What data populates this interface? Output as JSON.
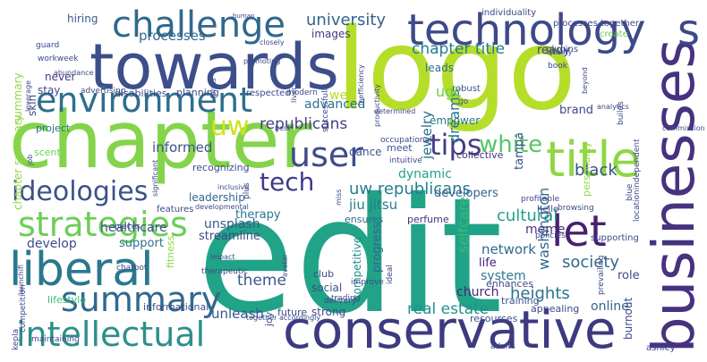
{
  "words": [
    {
      "text": "edit",
      "color": "#21A387"
    },
    {
      "text": "logo",
      "color": "#B5DE2B"
    },
    {
      "text": "chapter",
      "color": "#84D44B"
    },
    {
      "text": "towards",
      "color": "#3C4F8A"
    },
    {
      "text": "conservative",
      "color": "#3E3A80"
    },
    {
      "text": "businesses",
      "color": "#46327F"
    },
    {
      "text": "technology",
      "color": "#3E4989"
    },
    {
      "text": "challenge",
      "color": "#31688E"
    },
    {
      "text": "environment",
      "color": "#2E6E8E"
    },
    {
      "text": "liberal",
      "color": "#2A788E"
    },
    {
      "text": "intellectual",
      "color": "#2E8F8A"
    },
    {
      "text": "title",
      "color": "#8FD744"
    },
    {
      "text": "strategies",
      "color": "#6CCE59"
    },
    {
      "text": "summary",
      "color": "#30698E"
    },
    {
      "text": "ideologies",
      "color": "#3B528B"
    },
    {
      "text": "let",
      "color": "#482071"
    },
    {
      "text": "user",
      "color": "#3E4C8A"
    },
    {
      "text": "tips",
      "color": "#433E85"
    },
    {
      "text": "uw",
      "color": "#D2E21B"
    },
    {
      "text": "white",
      "color": "#56C667"
    },
    {
      "text": "tech",
      "color": "#40398C"
    },
    {
      "text": "s",
      "color": "#3E4989"
    },
    {
      "text": "uw republicans",
      "color": "#287C8E"
    },
    {
      "text": "university",
      "color": "#33628D"
    },
    {
      "text": "republicans",
      "color": "#433E85"
    },
    {
      "text": "chapter title",
      "color": "#297A8E"
    },
    {
      "text": "black",
      "color": "#3B528B"
    },
    {
      "text": "cultural",
      "color": "#1FA187"
    },
    {
      "text": "theme",
      "color": "#38588C"
    },
    {
      "text": "society",
      "color": "#31688E"
    },
    {
      "text": "network",
      "color": "#30698E"
    },
    {
      "text": "heights",
      "color": "#2C728E"
    },
    {
      "text": "real estate",
      "color": "#21918C"
    },
    {
      "text": "unleash",
      "color": "#39568C"
    },
    {
      "text": "washington",
      "color": "#30698E"
    },
    {
      "text": "processes",
      "color": "#31688E"
    },
    {
      "text": "informed",
      "color": "#3B528B"
    },
    {
      "text": "advanced",
      "color": "#2D708E"
    },
    {
      "text": "jewelry",
      "color": "#2D708E"
    },
    {
      "text": "dreams",
      "color": "#2A768E"
    },
    {
      "text": "developers",
      "color": "#33638D"
    },
    {
      "text": "dynamic",
      "color": "#20A486"
    },
    {
      "text": "jiu jitsu",
      "color": "#287C8E"
    },
    {
      "text": "selfcare",
      "color": "#3ABA76"
    },
    {
      "text": "healthcare",
      "color": "#3B528B"
    },
    {
      "text": "develop",
      "color": "#3E4A89"
    },
    {
      "text": "support",
      "color": "#2C738E"
    },
    {
      "text": "therapy",
      "color": "#2A788E"
    },
    {
      "text": "leadership",
      "color": "#31688E"
    },
    {
      "text": "unsplash",
      "color": "#38588C"
    },
    {
      "text": "streamline",
      "color": "#3E4989"
    },
    {
      "text": "church",
      "color": "#482677"
    },
    {
      "text": "system",
      "color": "#2A788E"
    },
    {
      "text": "online",
      "color": "#31688E"
    },
    {
      "text": "life",
      "color": "#482475"
    },
    {
      "text": "role",
      "color": "#3E4989"
    },
    {
      "text": "meme",
      "color": "#46337F"
    },
    {
      "text": "brand",
      "color": "#3F4889"
    },
    {
      "text": "ready",
      "color": "#433E85"
    },
    {
      "text": "ugc",
      "color": "#6CCE59"
    },
    {
      "text": "leads",
      "color": "#2E6E8E"
    },
    {
      "text": "dance",
      "color": "#3B528B"
    },
    {
      "text": "tampa",
      "color": "#3B528B"
    },
    {
      "text": "progress",
      "color": "#31688E"
    },
    {
      "text": "competitive",
      "color": "#218F8D"
    },
    {
      "text": "burnout",
      "color": "#3E4989"
    },
    {
      "text": "stay",
      "color": "#3E4C8A"
    },
    {
      "text": "never",
      "color": "#453781"
    },
    {
      "text": "hiring",
      "color": "#375A8C"
    },
    {
      "text": "project",
      "color": "#2C738E"
    },
    {
      "text": "recognizing",
      "color": "#3E4C8A"
    },
    {
      "text": "images",
      "color": "#443A83"
    },
    {
      "text": "web",
      "color": "#B5DE2B"
    },
    {
      "text": "empower",
      "color": "#2A788E"
    },
    {
      "text": "collective",
      "color": "#46307E"
    },
    {
      "text": "ensures",
      "color": "#30698E"
    },
    {
      "text": "perfume",
      "color": "#46337F"
    },
    {
      "text": "social",
      "color": "#3B528B"
    },
    {
      "text": "club",
      "color": "#3E4989"
    },
    {
      "text": "strong",
      "color": "#3E4C8A"
    },
    {
      "text": "future",
      "color": "#3E4C8A"
    },
    {
      "text": "informational",
      "color": "#3B528B"
    },
    {
      "text": "lifestyle",
      "color": "#3ABA76"
    },
    {
      "text": "resources",
      "color": "#3B528B"
    },
    {
      "text": "training",
      "color": "#3B528B"
    },
    {
      "text": "enhances",
      "color": "#3E4C8A"
    },
    {
      "text": "appealing",
      "color": "#3E4989"
    },
    {
      "text": "skin",
      "color": "#3E4989"
    },
    {
      "text": "summary",
      "color": "#90D743"
    },
    {
      "text": "chapter summary",
      "color": "#90D743"
    },
    {
      "text": "personality",
      "color": "#90D743"
    },
    {
      "text": "fitness",
      "color": "#90D743"
    },
    {
      "text": "scent",
      "color": "#6CCE59"
    },
    {
      "text": "meet",
      "color": "#38588C"
    },
    {
      "text": "joy",
      "color": "#3B528B"
    },
    {
      "text": "individuality",
      "color": "#3E4989"
    },
    {
      "text": "processes together",
      "color": "#3E4989"
    },
    {
      "text": "create",
      "color": "#6CCE59"
    },
    {
      "text": "plugins",
      "color": "#3B528B"
    },
    {
      "text": "robust",
      "color": "#3B528B"
    },
    {
      "text": "go",
      "color": "#3B528B"
    },
    {
      "text": "disabilities",
      "color": "#3E4989"
    },
    {
      "text": "planning",
      "color": "#3E4989"
    },
    {
      "text": "respected",
      "color": "#3E4989"
    },
    {
      "text": "modern",
      "color": "#3E4989"
    },
    {
      "text": "closely",
      "color": "#3E4989"
    },
    {
      "text": "workweek",
      "color": "#3E4989"
    },
    {
      "text": "guard",
      "color": "#3E4989"
    },
    {
      "text": "promoting",
      "color": "#3E4989"
    },
    {
      "text": "advertising",
      "color": "#3E4989"
    },
    {
      "text": "abundance",
      "color": "#3E4989"
    },
    {
      "text": "successfully",
      "color": "#3E4989"
    },
    {
      "text": "inefficiency",
      "color": "#3E4989"
    },
    {
      "text": "productivity",
      "color": "#3E4989"
    },
    {
      "text": "liver",
      "color": "#3E4989"
    },
    {
      "text": "occupational",
      "color": "#3E4989"
    },
    {
      "text": "intuitive",
      "color": "#3E4989"
    },
    {
      "text": "miss",
      "color": "#3E4989"
    },
    {
      "text": "features",
      "color": "#3E4989"
    },
    {
      "text": "plus",
      "color": "#3E4989"
    },
    {
      "text": "inclusive",
      "color": "#3E4989"
    },
    {
      "text": "pieces",
      "color": "#3E4989"
    },
    {
      "text": "chatbot",
      "color": "#3E4989"
    },
    {
      "text": "therapeutic",
      "color": "#3E4989"
    },
    {
      "text": "avatar",
      "color": "#3E4989"
    },
    {
      "text": "delivery",
      "color": "#3E4989"
    },
    {
      "text": "ideal",
      "color": "#3E4989"
    },
    {
      "text": "trading",
      "color": "#3E4989"
    },
    {
      "text": "improve",
      "color": "#3E4989"
    },
    {
      "text": "hello",
      "color": "#3E4989"
    },
    {
      "text": "profitable",
      "color": "#3E4989"
    },
    {
      "text": "browsing",
      "color": "#3E4989"
    },
    {
      "text": "supporting",
      "color": "#3E4989"
    },
    {
      "text": "policies",
      "color": "#3E4989"
    },
    {
      "text": "prevailing",
      "color": "#3E4989"
    },
    {
      "text": "ashley",
      "color": "#3E4989"
    },
    {
      "text": "adults",
      "color": "#3E4989"
    },
    {
      "text": "maintaining",
      "color": "#3E4989"
    },
    {
      "text": "competition",
      "color": "#3E4989"
    },
    {
      "text": "kepla",
      "color": "#3E4989"
    },
    {
      "text": "launchifi",
      "color": "#3E4989"
    },
    {
      "text": "impact",
      "color": "#3E4989"
    },
    {
      "text": "developmental",
      "color": "#3E4989"
    },
    {
      "text": "significant",
      "color": "#3E4989"
    },
    {
      "text": "job",
      "color": "#3E4989"
    },
    {
      "text": "leverage",
      "color": "#3E4989"
    },
    {
      "text": "forms",
      "color": "#3E4989"
    },
    {
      "text": "book",
      "color": "#3E4989"
    },
    {
      "text": "quality",
      "color": "#3E4989"
    },
    {
      "text": "analytics",
      "color": "#3E4989"
    },
    {
      "text": "beyond",
      "color": "#3E4989"
    },
    {
      "text": "blue",
      "color": "#3E4989"
    },
    {
      "text": "locationindependent",
      "color": "#3E4989"
    },
    {
      "text": "human",
      "color": "#3E4989"
    },
    {
      "text": "determined",
      "color": "#3E4989"
    },
    {
      "text": "together accordingly",
      "color": "#3E4989"
    },
    {
      "text": "builds",
      "color": "#3E4989"
    },
    {
      "text": "commission",
      "color": "#3E4989"
    },
    {
      "text": "best",
      "color": "#3E4989"
    }
  ]
}
